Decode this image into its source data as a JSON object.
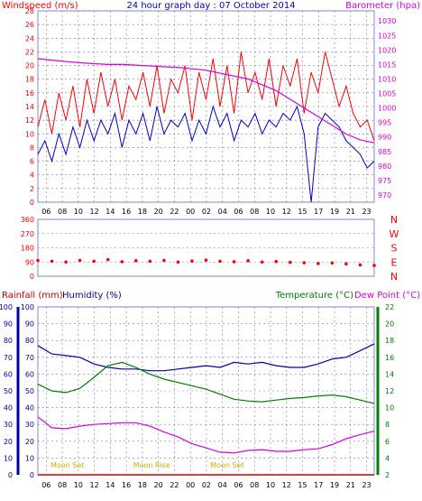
{
  "title": "24 hour graph day : 07 October 2014",
  "colors": {
    "wind_gust": "#ff0000",
    "wind_avg": "#0000cc",
    "barometer": "#dd00dd",
    "wind_dir": "#ff0000",
    "humidity": "#0000aa",
    "temperature": "#008000",
    "dew_point": "#dd00dd",
    "rainfall": "#cc0000",
    "moon": "#ddaa00",
    "grid": "#7777cc"
  },
  "chart_data": [
    {
      "type": "line",
      "name": "wind-barometer",
      "ylabel_left": "Windspeed (m/s)",
      "ylabel_right": "Barometer (hpa)",
      "x_ticks": [
        "06",
        "08",
        "10",
        "12",
        "14",
        "16",
        "18",
        "20",
        "22",
        "00",
        "02",
        "04",
        "06",
        "08",
        "10",
        "12",
        "15",
        "17",
        "19",
        "21",
        "23"
      ],
      "ylim_left": [
        0,
        28
      ],
      "ylim_right": [
        967.5,
        1033.5
      ],
      "y_ticks_left": [
        0,
        2,
        4,
        6,
        8,
        10,
        12,
        14,
        16,
        18,
        20,
        22,
        24,
        26,
        28
      ],
      "y_ticks_right": [
        970,
        975,
        980,
        985,
        990,
        995,
        1000,
        1005,
        1010,
        1015,
        1020,
        1025,
        1030
      ],
      "grid": true,
      "series": [
        {
          "name": "gust",
          "x": [
            0,
            0.5,
            1,
            1.5,
            2,
            2.5,
            3,
            3.5,
            4,
            4.5,
            5,
            5.5,
            6,
            6.5,
            7,
            7.5,
            8,
            8.5,
            9,
            9.5,
            10,
            10.5,
            11,
            11.5,
            12,
            12.5,
            13,
            13.5,
            14,
            14.5,
            15,
            15.5,
            16,
            16.5,
            17,
            17.5,
            18,
            18.5,
            19,
            19.5,
            20,
            20.5,
            21,
            21.5,
            22,
            22.5,
            23,
            23.5,
            24
          ],
          "values": [
            11,
            15,
            10,
            16,
            12,
            17,
            11,
            18,
            13,
            19,
            14,
            18,
            12,
            17,
            15,
            19,
            14,
            20,
            13,
            18,
            16,
            20,
            12,
            19,
            15,
            21,
            14,
            20,
            13,
            22,
            16,
            19,
            15,
            21,
            14,
            20,
            17,
            21,
            13,
            19,
            16,
            22,
            18,
            14,
            17,
            13,
            11,
            12,
            9
          ]
        },
        {
          "name": "avg",
          "x": [
            0,
            0.5,
            1,
            1.5,
            2,
            2.5,
            3,
            3.5,
            4,
            4.5,
            5,
            5.5,
            6,
            6.5,
            7,
            7.5,
            8,
            8.5,
            9,
            9.5,
            10,
            10.5,
            11,
            11.5,
            12,
            12.5,
            13,
            13.5,
            14,
            14.5,
            15,
            15.5,
            16,
            16.5,
            17,
            17.5,
            18,
            18.5,
            19,
            19.5,
            20,
            20.5,
            21,
            21.5,
            22,
            22.5,
            23,
            23.5,
            24
          ],
          "values": [
            7,
            9,
            6,
            10,
            7,
            11,
            8,
            12,
            9,
            12,
            10,
            13,
            8,
            12,
            10,
            13,
            9,
            14,
            10,
            12,
            11,
            13,
            9,
            12,
            10,
            14,
            11,
            13,
            9,
            12,
            11,
            13,
            10,
            12,
            11,
            13,
            12,
            14,
            10,
            0,
            11,
            13,
            12,
            11,
            9,
            8,
            7,
            5,
            6
          ]
        },
        {
          "name": "barometer",
          "x": [
            0,
            1,
            2,
            3,
            4,
            5,
            6,
            7,
            8,
            9,
            10,
            11,
            12,
            13,
            14,
            15,
            16,
            17,
            18,
            19,
            20,
            21,
            22,
            23,
            24
          ],
          "values": [
            1017,
            1016.5,
            1016,
            1015.6,
            1015.3,
            1015,
            1015,
            1014.8,
            1014.5,
            1014.2,
            1014,
            1013.5,
            1013,
            1012,
            1011,
            1010,
            1008,
            1006,
            1003,
            1000,
            997,
            994,
            991,
            989,
            988
          ]
        }
      ]
    },
    {
      "type": "scatter",
      "name": "wind-direction",
      "y_ticks": [
        "360",
        "270",
        "180",
        "90",
        "0"
      ],
      "direction_labels": [
        "N",
        "W",
        "S",
        "E",
        "N"
      ],
      "ylim": [
        0,
        360
      ],
      "x": [
        0,
        1,
        2,
        3,
        4,
        5,
        6,
        7,
        8,
        9,
        10,
        11,
        12,
        13,
        14,
        15,
        16,
        17,
        18,
        19,
        20,
        21,
        22,
        23,
        24
      ],
      "values": [
        100,
        95,
        90,
        100,
        95,
        105,
        92,
        98,
        95,
        100,
        90,
        96,
        102,
        95,
        92,
        98,
        90,
        93,
        88,
        85,
        80,
        84,
        78,
        72,
        68
      ]
    },
    {
      "type": "line",
      "name": "humidity-temperature",
      "ylabel_rainfall": "Rainfall (mm)",
      "ylabel_humidity": "Humidity (%)",
      "ylabel_temperature": "Temperature (°C)",
      "ylabel_dew": "Dew Point (°C)",
      "ylim_left": [
        0,
        100
      ],
      "ylim_right": [
        2,
        22
      ],
      "y_ticks_left": [
        0,
        10,
        20,
        30,
        40,
        50,
        60,
        70,
        80,
        90,
        100
      ],
      "y_ticks_right": [
        2,
        4,
        6,
        8,
        10,
        12,
        14,
        16,
        18,
        20,
        22
      ],
      "grid": true,
      "annotations": [
        "Moon Set",
        "Moon Rise",
        "Moon Set"
      ],
      "series": [
        {
          "name": "humidity",
          "x": [
            0,
            1,
            2,
            3,
            4,
            5,
            6,
            7,
            8,
            9,
            10,
            11,
            12,
            13,
            14,
            15,
            16,
            17,
            18,
            19,
            20,
            21,
            22,
            23,
            24
          ],
          "values": [
            77,
            72,
            71,
            70,
            66,
            64,
            63,
            63,
            62,
            62,
            63,
            64,
            65,
            64,
            67,
            66,
            67,
            65,
            64,
            64,
            66,
            69,
            70,
            74,
            78
          ]
        },
        {
          "name": "temperature",
          "x": [
            0,
            1,
            2,
            3,
            4,
            5,
            6,
            7,
            8,
            9,
            10,
            11,
            12,
            13,
            14,
            15,
            16,
            17,
            18,
            19,
            20,
            21,
            22,
            23,
            24
          ],
          "values": [
            12.8,
            12,
            11.8,
            12.3,
            13.6,
            15,
            15.4,
            14.8,
            14,
            13.4,
            13,
            12.6,
            12.2,
            11.6,
            11,
            10.8,
            10.7,
            10.9,
            11.1,
            11.2,
            11.4,
            11.5,
            11.3,
            10.9,
            10.5
          ]
        },
        {
          "name": "dew_point",
          "x": [
            0,
            1,
            2,
            3,
            4,
            5,
            6,
            7,
            8,
            9,
            10,
            11,
            12,
            13,
            14,
            15,
            16,
            17,
            18,
            19,
            20,
            21,
            22,
            23,
            24
          ],
          "values": [
            8.9,
            7.6,
            7.5,
            7.8,
            8,
            8.1,
            8.2,
            8.2,
            7.8,
            7.1,
            6.5,
            5.7,
            5.2,
            4.7,
            4.6,
            4.9,
            5,
            4.8,
            4.8,
            5,
            5.1,
            5.6,
            6.3,
            6.8,
            7.2
          ]
        },
        {
          "name": "rainfall",
          "x": [
            0,
            24
          ],
          "values": [
            0,
            0
          ]
        }
      ]
    }
  ]
}
